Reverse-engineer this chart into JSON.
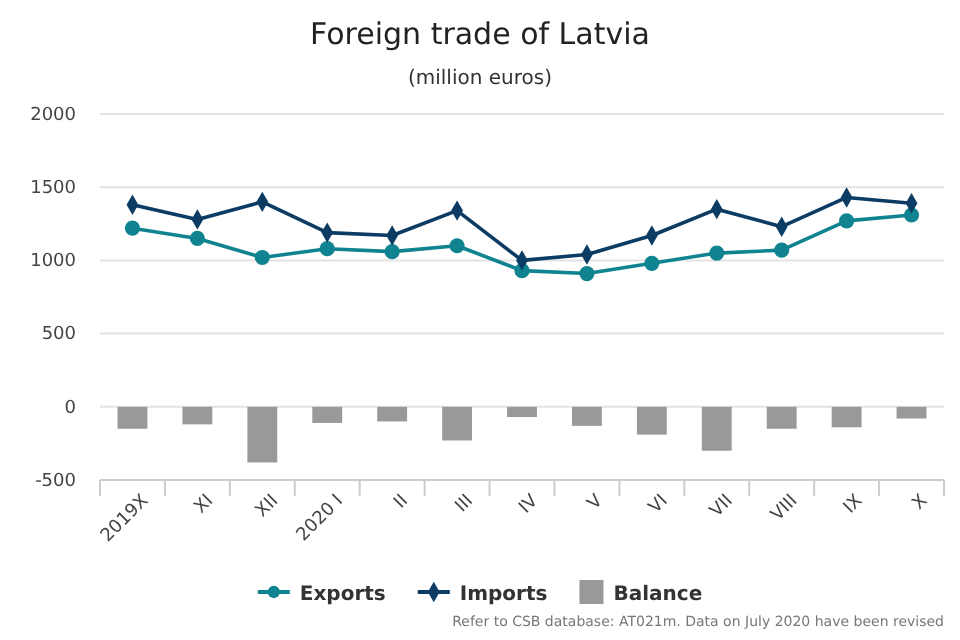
{
  "chart_data": {
    "type": "line",
    "title": "Foreign trade of Latvia",
    "subtitle": "(million euros)",
    "categories": [
      "2019X",
      "XI",
      "XII",
      "2020 I",
      "II",
      "III",
      "IV",
      "V",
      "VI",
      "VII",
      "VIII",
      "IX",
      "X"
    ],
    "series": [
      {
        "name": "Exports",
        "color": "#0f8490",
        "marker": "circle",
        "values": [
          1220,
          1150,
          1020,
          1080,
          1060,
          1100,
          930,
          910,
          980,
          1050,
          1070,
          1270,
          1310
        ]
      },
      {
        "name": "Imports",
        "color": "#0c3c64",
        "marker": "diamond",
        "values": [
          1380,
          1280,
          1400,
          1190,
          1170,
          1340,
          1000,
          1040,
          1170,
          1350,
          1230,
          1430,
          1390
        ]
      },
      {
        "name": "Balance",
        "type": "bar",
        "color": "#999999",
        "values": [
          -150,
          -120,
          -380,
          -110,
          -100,
          -230,
          -70,
          -130,
          -190,
          -300,
          -150,
          -140,
          -80
        ]
      }
    ],
    "ylim": [
      -500,
      2000
    ],
    "yticks": [
      -500,
      0,
      500,
      1000,
      1500,
      2000
    ],
    "grid": "y",
    "legend": "bottom",
    "annotations": [
      "Refer to CSB database: AT021m. Data on July 2020 have been revised"
    ]
  }
}
